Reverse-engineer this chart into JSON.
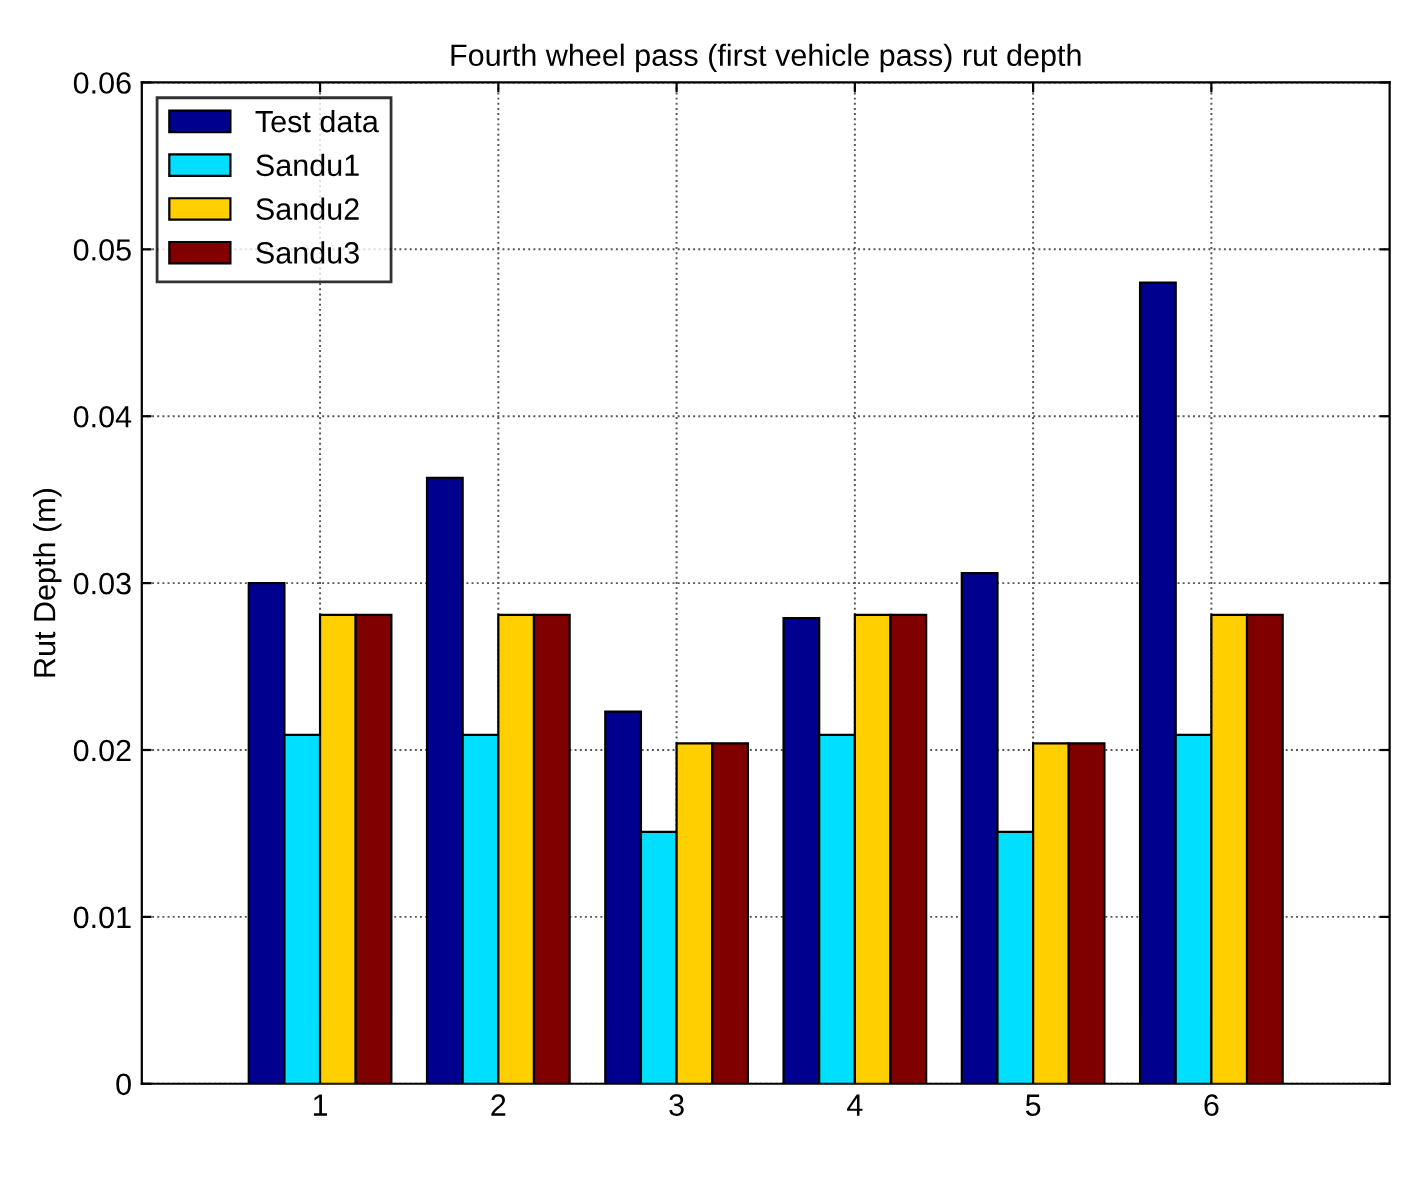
{
  "chart_data": {
    "type": "bar",
    "title": "Fourth wheel pass (first vehicle pass) rut depth",
    "ylabel": "Rut Depth (m)",
    "categories": [
      "1",
      "2",
      "3",
      "4",
      "5",
      "6"
    ],
    "series": [
      {
        "name": "Test data",
        "color": "#00008f",
        "values": [
          0.03,
          0.0363,
          0.0223,
          0.0279,
          0.0306,
          0.048
        ]
      },
      {
        "name": "Sandu1",
        "color": "#00dfff",
        "values": [
          0.0209,
          0.0209,
          0.0151,
          0.0209,
          0.0151,
          0.0209
        ]
      },
      {
        "name": "Sandu2",
        "color": "#ffcf00",
        "values": [
          0.0281,
          0.0281,
          0.0204,
          0.0281,
          0.0204,
          0.0281
        ]
      },
      {
        "name": "Sandu3",
        "color": "#800000",
        "values": [
          0.0281,
          0.0281,
          0.0204,
          0.0281,
          0.0204,
          0.0281
        ]
      }
    ],
    "ylim": [
      0,
      0.06
    ],
    "yticks": [
      0,
      0.01,
      0.02,
      0.03,
      0.04,
      0.05,
      0.06
    ],
    "grid": true,
    "legend": "top left"
  }
}
